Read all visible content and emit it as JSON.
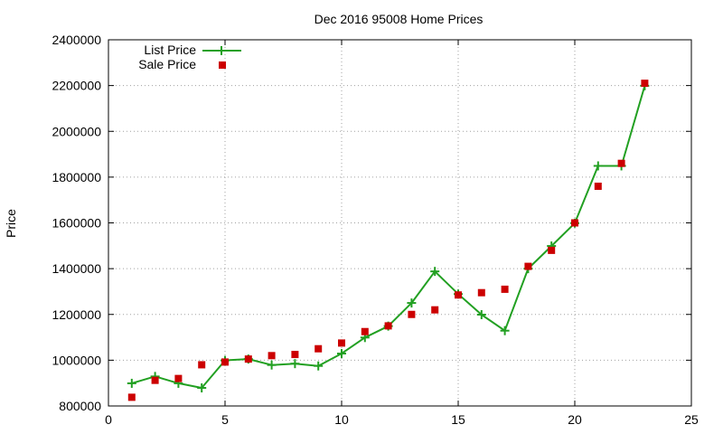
{
  "chart_data": {
    "type": "line",
    "title": "Dec 2016 95008 Home Prices",
    "xlabel": "",
    "ylabel": "Price",
    "xlim": [
      0,
      25
    ],
    "ylim": [
      800000,
      2400000
    ],
    "x_ticks": [
      0,
      5,
      10,
      15,
      20,
      25
    ],
    "y_ticks": [
      800000,
      1000000,
      1200000,
      1400000,
      1600000,
      1800000,
      2000000,
      2200000,
      2400000
    ],
    "x_tick_labels": [
      "0",
      "5",
      "10",
      "15",
      "20",
      "25"
    ],
    "y_tick_labels": [
      "800000",
      "1000000",
      "1200000",
      "1400000",
      "1600000",
      "1800000",
      "2000000",
      "2200000",
      "2400000"
    ],
    "grid": true,
    "legend_position": "top-left",
    "series": [
      {
        "name": "List Price",
        "style": "line-plus",
        "color": "#22a022",
        "x": [
          1,
          2,
          3,
          4,
          5,
          6,
          7,
          8,
          9,
          10,
          11,
          12,
          13,
          14,
          15,
          16,
          17,
          18,
          19,
          20,
          21,
          22,
          23
        ],
        "values": [
          899000,
          929000,
          899000,
          879000,
          999000,
          1005000,
          979000,
          985000,
          975000,
          1029000,
          1099000,
          1149000,
          1250000,
          1388000,
          1289000,
          1199000,
          1129000,
          1400000,
          1499000,
          1599000,
          1849000,
          1849000,
          2199000
        ]
      },
      {
        "name": "Sale Price",
        "style": "square",
        "color": "#cc0000",
        "x": [
          1,
          2,
          3,
          4,
          5,
          6,
          7,
          8,
          9,
          10,
          11,
          12,
          13,
          14,
          15,
          16,
          17,
          18,
          19,
          20,
          21,
          22,
          23
        ],
        "values": [
          838000,
          912000,
          920000,
          980000,
          992000,
          1005000,
          1020000,
          1025000,
          1050000,
          1075000,
          1125000,
          1150000,
          1200000,
          1220000,
          1285000,
          1295000,
          1310000,
          1410000,
          1480000,
          1600000,
          1760000,
          1860000,
          2210000
        ]
      }
    ]
  }
}
